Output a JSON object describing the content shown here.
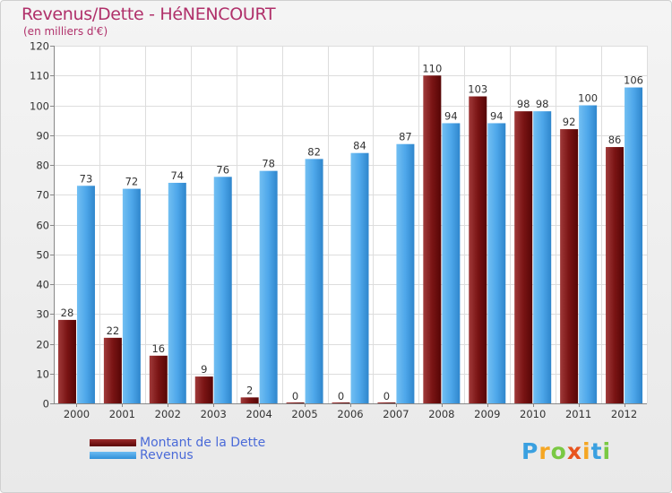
{
  "header": {
    "title": "Revenus/Dette - HéNENCOURT",
    "subtitle": "(en milliers d'€)"
  },
  "chart_data": {
    "type": "bar",
    "title": "Revenus/Dette - HéNENCOURT",
    "subtitle": "(en milliers d'€)",
    "xlabel": "",
    "ylabel": "",
    "ylim": [
      0,
      120
    ],
    "yticks": [
      0,
      10,
      20,
      30,
      40,
      50,
      60,
      70,
      80,
      90,
      100,
      110,
      120
    ],
    "grid": true,
    "legend_position": "bottom-left",
    "categories": [
      "2000",
      "2001",
      "2002",
      "2003",
      "2004",
      "2005",
      "2006",
      "2007",
      "2008",
      "2009",
      "2010",
      "2011",
      "2012"
    ],
    "series": [
      {
        "name": "Montant de la Dette",
        "color": "#7a0e0e",
        "values": [
          28,
          22,
          16,
          9,
          2,
          0,
          0,
          0,
          110,
          103,
          98,
          92,
          86
        ]
      },
      {
        "name": "Revenus",
        "color": "#4da6ea",
        "values": [
          73,
          72,
          74,
          76,
          78,
          82,
          84,
          87,
          94,
          94,
          98,
          100,
          106
        ]
      }
    ]
  },
  "legend": {
    "items": [
      {
        "label": "Montant de la Dette",
        "color": "#7a0e0e"
      },
      {
        "label": "Revenus",
        "color": "#4da6ea"
      }
    ]
  },
  "logo": {
    "letters": [
      "P",
      "r",
      "o",
      "x",
      "i",
      "t",
      "i"
    ],
    "colors": [
      "#3aa0e0",
      "#f5a623",
      "#7ac943",
      "#e8541e",
      "#f5a623",
      "#3aa0e0",
      "#7ac943"
    ]
  }
}
